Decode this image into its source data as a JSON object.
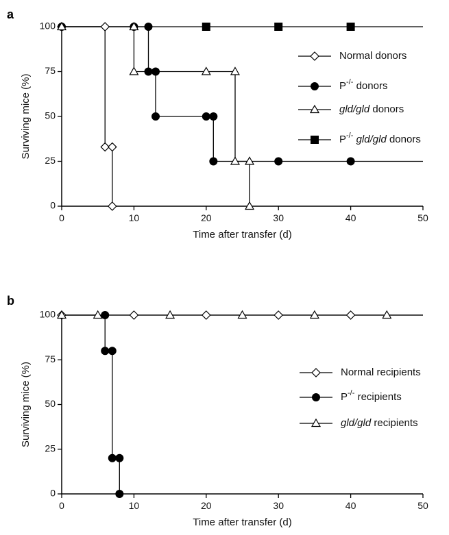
{
  "chart_data": [
    {
      "panel_label": "a",
      "type": "line",
      "step": true,
      "xlabel": "Time after transfer (d)",
      "ylabel": "Surviving mice (%)",
      "xlim": [
        0,
        50
      ],
      "ylim": [
        0,
        100
      ],
      "xticks": [
        0,
        10,
        20,
        30,
        40,
        50
      ],
      "yticks": [
        0,
        25,
        50,
        75,
        100
      ],
      "legend_position": "right",
      "series": [
        {
          "name": "Normal donors",
          "legend": {
            "prefix": "Normal",
            "suffix": "donors"
          },
          "marker": "open-diamond",
          "points": [
            [
              0,
              100
            ],
            [
              6,
              100
            ],
            [
              6,
              33
            ],
            [
              7,
              33
            ],
            [
              7,
              0
            ]
          ],
          "step_path": [
            [
              0,
              100
            ],
            [
              6,
              100
            ],
            [
              6,
              33
            ],
            [
              7,
              33
            ],
            [
              7,
              0
            ]
          ]
        },
        {
          "name": "P-/- donors",
          "legend": {
            "prefix": "P",
            "sup": "-/-",
            "suffix": "donors"
          },
          "marker": "filled-circle",
          "points": [
            [
              0,
              100
            ],
            [
              10,
              100
            ],
            [
              12,
              100
            ],
            [
              12,
              75
            ],
            [
              13,
              75
            ],
            [
              13,
              50
            ],
            [
              20,
              50
            ],
            [
              21,
              50
            ],
            [
              21,
              25
            ],
            [
              30,
              25
            ],
            [
              40,
              25
            ]
          ],
          "step_path": [
            [
              0,
              100
            ],
            [
              12,
              100
            ],
            [
              12,
              75
            ],
            [
              13,
              75
            ],
            [
              13,
              50
            ],
            [
              21,
              50
            ],
            [
              21,
              25
            ],
            [
              50,
              25
            ]
          ]
        },
        {
          "name": "gld/gld donors",
          "legend": {
            "italic": "gld/gld",
            "suffix": "donors"
          },
          "marker": "open-triangle",
          "points": [
            [
              0,
              100
            ],
            [
              10,
              100
            ],
            [
              10,
              75
            ],
            [
              20,
              75
            ],
            [
              24,
              75
            ],
            [
              24,
              25
            ],
            [
              26,
              25
            ],
            [
              26,
              0
            ]
          ],
          "step_path": [
            [
              0,
              100
            ],
            [
              10,
              100
            ],
            [
              10,
              75
            ],
            [
              24,
              75
            ],
            [
              24,
              25
            ],
            [
              26,
              25
            ],
            [
              26,
              0
            ]
          ]
        },
        {
          "name": "P-/- gld/gld donors",
          "legend": {
            "prefix": "P",
            "sup": "-/-",
            "italic": "gld/gld",
            "suffix": "donors"
          },
          "marker": "filled-square",
          "points": [
            [
              20,
              100
            ],
            [
              30,
              100
            ],
            [
              40,
              100
            ]
          ],
          "step_path": [
            [
              0,
              100
            ],
            [
              50,
              100
            ]
          ]
        }
      ]
    },
    {
      "panel_label": "b",
      "type": "line",
      "step": true,
      "xlabel": "Time after transfer (d)",
      "ylabel": "Surviving mice (%)",
      "xlim": [
        0,
        50
      ],
      "ylim": [
        0,
        100
      ],
      "xticks": [
        0,
        10,
        20,
        30,
        40,
        50
      ],
      "yticks": [
        0,
        25,
        50,
        75,
        100
      ],
      "legend_position": "right",
      "series": [
        {
          "name": "Normal recipients",
          "legend": {
            "prefix": "Normal",
            "suffix": "recipients"
          },
          "marker": "open-diamond",
          "points": [
            [
              0,
              100
            ],
            [
              10,
              100
            ],
            [
              20,
              100
            ],
            [
              30,
              100
            ],
            [
              40,
              100
            ]
          ],
          "step_path": [
            [
              0,
              100
            ],
            [
              50,
              100
            ]
          ]
        },
        {
          "name": "P-/- recipients",
          "legend": {
            "prefix": "P",
            "sup": "-/-",
            "suffix": "recipients"
          },
          "marker": "filled-circle",
          "points": [
            [
              6,
              100
            ],
            [
              6,
              80
            ],
            [
              7,
              80
            ],
            [
              7,
              20
            ],
            [
              8,
              20
            ],
            [
              8,
              0
            ]
          ],
          "step_path": [
            [
              0,
              100
            ],
            [
              6,
              100
            ],
            [
              6,
              80
            ],
            [
              7,
              80
            ],
            [
              7,
              20
            ],
            [
              8,
              20
            ],
            [
              8,
              0
            ]
          ]
        },
        {
          "name": "gld/gld recipients",
          "legend": {
            "italic": "gld/gld",
            "suffix": "recipients"
          },
          "marker": "open-triangle",
          "points": [
            [
              0,
              100
            ],
            [
              5,
              100
            ],
            [
              15,
              100
            ],
            [
              25,
              100
            ],
            [
              35,
              100
            ],
            [
              45,
              100
            ]
          ],
          "step_path": [
            [
              0,
              100
            ],
            [
              50,
              100
            ]
          ]
        }
      ]
    }
  ]
}
